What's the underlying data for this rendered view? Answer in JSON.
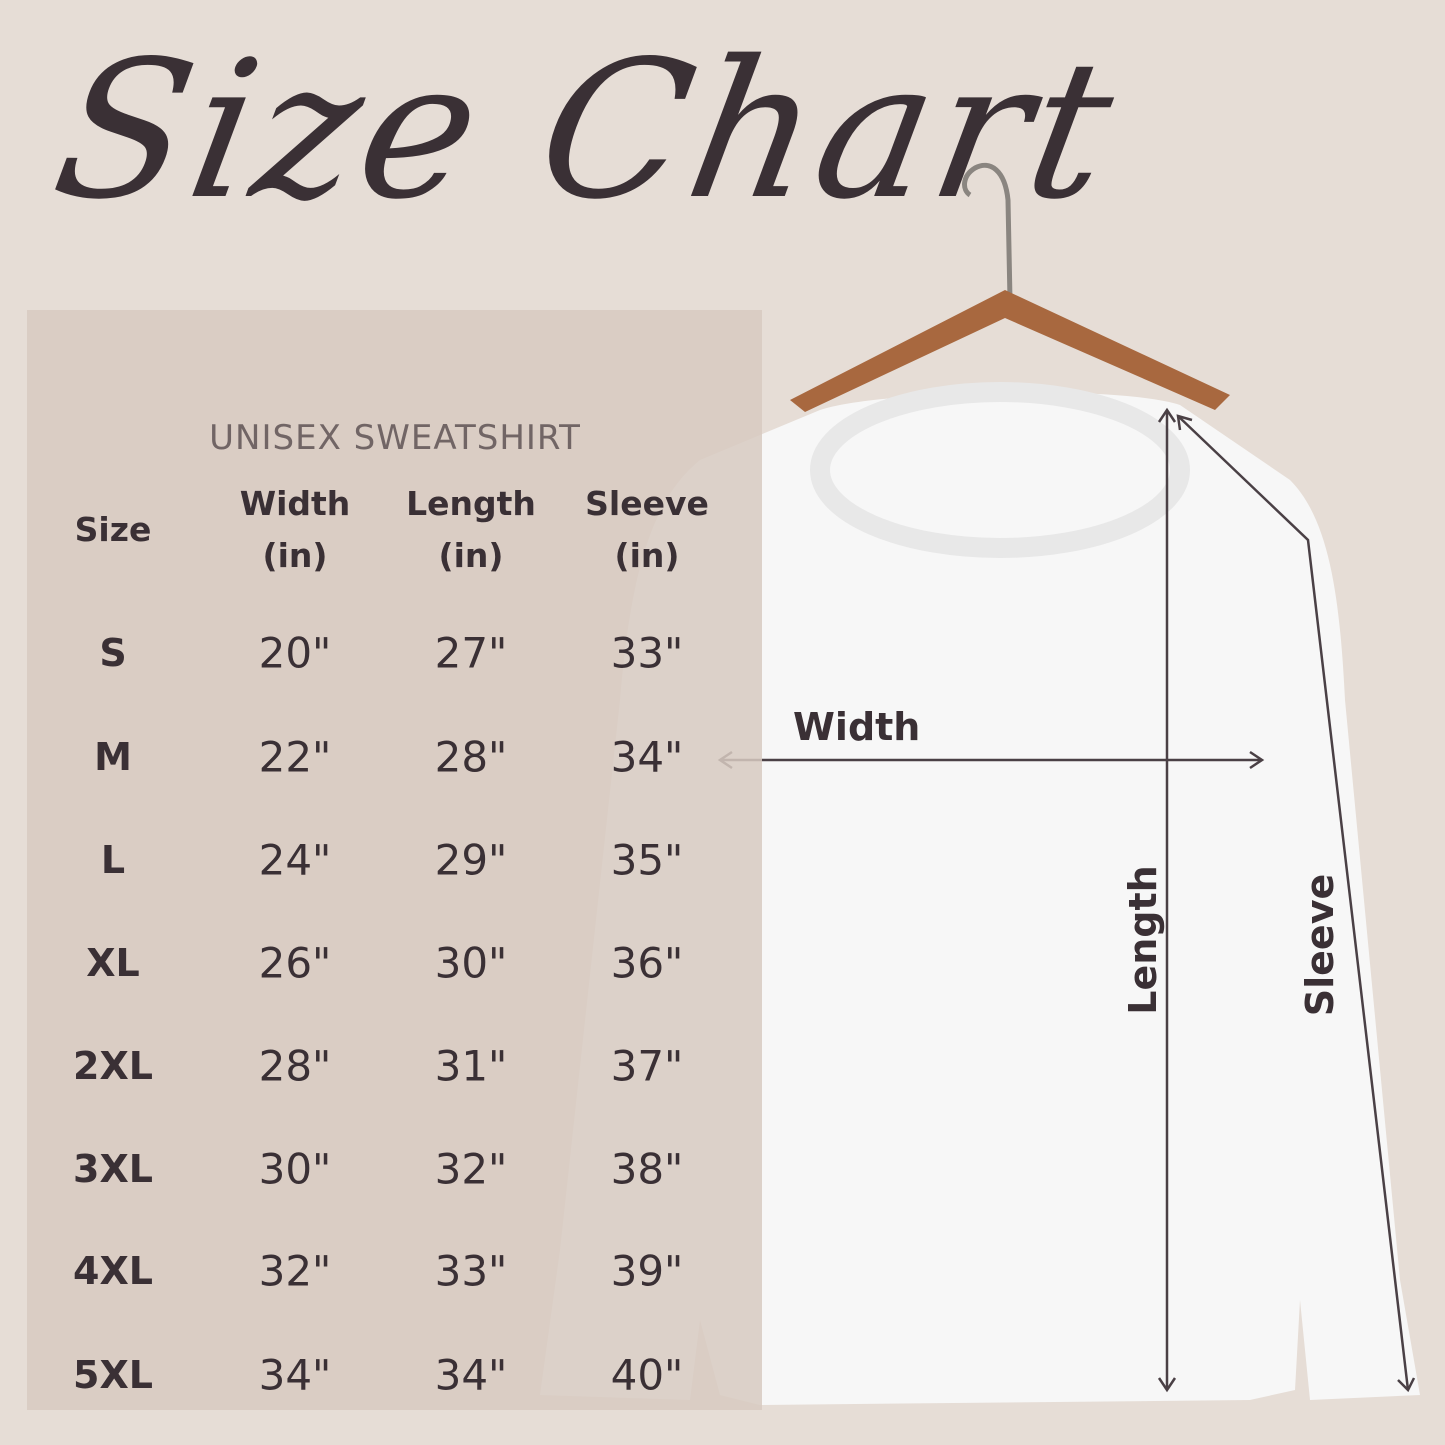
{
  "title": "Size Chart",
  "subtitle": "UNISEX SWEATSHIRT",
  "table": {
    "headers": [
      {
        "line1": "Size",
        "line2": ""
      },
      {
        "line1": "Width",
        "line2": "(in)"
      },
      {
        "line1": "Length",
        "line2": "(in)"
      },
      {
        "line1": "Sleeve",
        "line2": "(in)"
      }
    ],
    "rows": [
      {
        "size": "S",
        "width": "20\"",
        "length": "27\"",
        "sleeve": "33\""
      },
      {
        "size": "M",
        "width": "22\"",
        "length": "28\"",
        "sleeve": "34\""
      },
      {
        "size": "L",
        "width": "24\"",
        "length": "29\"",
        "sleeve": "35\""
      },
      {
        "size": "XL",
        "width": "26\"",
        "length": "30\"",
        "sleeve": "36\""
      },
      {
        "size": "2XL",
        "width": "28\"",
        "length": "31\"",
        "sleeve": "37\""
      },
      {
        "size": "3XL",
        "width": "30\"",
        "length": "32\"",
        "sleeve": "38\""
      },
      {
        "size": "4XL",
        "width": "32\"",
        "length": "33\"",
        "sleeve": "39\""
      },
      {
        "size": "5XL",
        "width": "34\"",
        "length": "34\"",
        "sleeve": "40\""
      }
    ]
  },
  "diagram": {
    "width_label": "Width",
    "length_label": "Length",
    "sleeve_label": "Sleeve"
  },
  "colors": {
    "background": "#e6ddd6",
    "panel": "#d7cac1",
    "text": "#3a3035",
    "garment": "#f7f7f7",
    "hanger": "#a8683f"
  }
}
